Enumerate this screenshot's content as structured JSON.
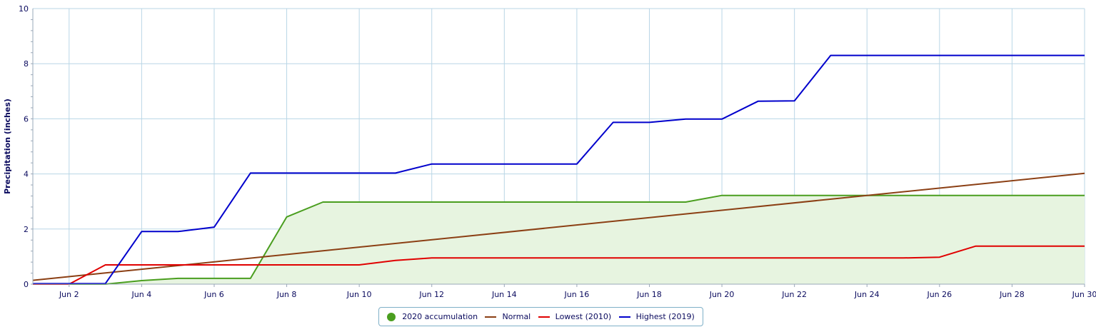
{
  "chart_data": {
    "type": "line",
    "title": "",
    "xlabel": "",
    "ylabel": "Precipitation (inches)",
    "ylim": [
      0,
      10
    ],
    "xlim": [
      1,
      30
    ],
    "y_ticks": [
      0,
      2,
      4,
      6,
      8,
      10
    ],
    "x_ticks": [
      {
        "day": 2,
        "label": "Jun 2"
      },
      {
        "day": 4,
        "label": "Jun 4"
      },
      {
        "day": 6,
        "label": "Jun 6"
      },
      {
        "day": 8,
        "label": "Jun 8"
      },
      {
        "day": 10,
        "label": "Jun 10"
      },
      {
        "day": 12,
        "label": "Jun 12"
      },
      {
        "day": 14,
        "label": "Jun 14"
      },
      {
        "day": 16,
        "label": "Jun 16"
      },
      {
        "day": 18,
        "label": "Jun 18"
      },
      {
        "day": 20,
        "label": "Jun 20"
      },
      {
        "day": 22,
        "label": "Jun 22"
      },
      {
        "day": 24,
        "label": "Jun 24"
      },
      {
        "day": 26,
        "label": "Jun 26"
      },
      {
        "day": 28,
        "label": "Jun 28"
      },
      {
        "day": 30,
        "label": "Jun 30"
      }
    ],
    "grid": true,
    "legend_position": "bottom-center",
    "series": [
      {
        "name": "2020 accumulation",
        "color": "#4a9e1f",
        "fill": "#e7f4e0",
        "style": "area",
        "x": [
          1,
          2,
          3,
          4,
          5,
          6,
          7,
          8,
          9,
          10,
          11,
          12,
          13,
          14,
          15,
          16,
          17,
          18,
          19,
          20,
          21,
          22,
          23,
          24,
          25,
          26,
          27,
          28,
          29,
          30
        ],
        "values": [
          0,
          0,
          0,
          0.13,
          0.21,
          0.21,
          0.21,
          2.44,
          2.98,
          2.98,
          2.98,
          2.98,
          2.98,
          2.98,
          2.98,
          2.98,
          2.98,
          2.98,
          2.98,
          3.22,
          3.22,
          3.22,
          3.22,
          3.22,
          3.22,
          3.22,
          3.22,
          3.22,
          3.22,
          3.22
        ]
      },
      {
        "name": "Normal",
        "color": "#8b3f14",
        "style": "line",
        "x": [
          1,
          30
        ],
        "values": [
          0.14,
          4.02
        ]
      },
      {
        "name": "Lowest (2010)",
        "color": "#e00000",
        "style": "line",
        "x": [
          1,
          2,
          3,
          4,
          5,
          6,
          7,
          8,
          9,
          10,
          11,
          12,
          13,
          14,
          15,
          16,
          17,
          18,
          19,
          20,
          21,
          22,
          23,
          24,
          25,
          26,
          27,
          28,
          29,
          30
        ],
        "values": [
          0,
          0,
          0.7,
          0.7,
          0.7,
          0.7,
          0.7,
          0.7,
          0.7,
          0.7,
          0.86,
          0.95,
          0.95,
          0.95,
          0.95,
          0.95,
          0.95,
          0.95,
          0.95,
          0.95,
          0.95,
          0.95,
          0.95,
          0.95,
          0.95,
          0.98,
          1.38,
          1.38,
          1.38,
          1.38
        ]
      },
      {
        "name": "Highest (2019)",
        "color": "#0000cc",
        "style": "line",
        "x": [
          1,
          2,
          3,
          4,
          5,
          6,
          7,
          8,
          9,
          10,
          11,
          12,
          13,
          14,
          15,
          16,
          17,
          18,
          19,
          20,
          21,
          22,
          23,
          24,
          25,
          26,
          27,
          28,
          29,
          30
        ],
        "values": [
          0.02,
          0.02,
          0.02,
          1.91,
          1.91,
          2.07,
          4.03,
          4.03,
          4.03,
          4.03,
          4.03,
          4.36,
          4.36,
          4.36,
          4.36,
          4.36,
          5.87,
          5.87,
          5.99,
          5.99,
          6.64,
          6.65,
          8.3,
          8.3,
          8.3,
          8.3,
          8.3,
          8.3,
          8.3,
          8.3
        ]
      }
    ]
  }
}
